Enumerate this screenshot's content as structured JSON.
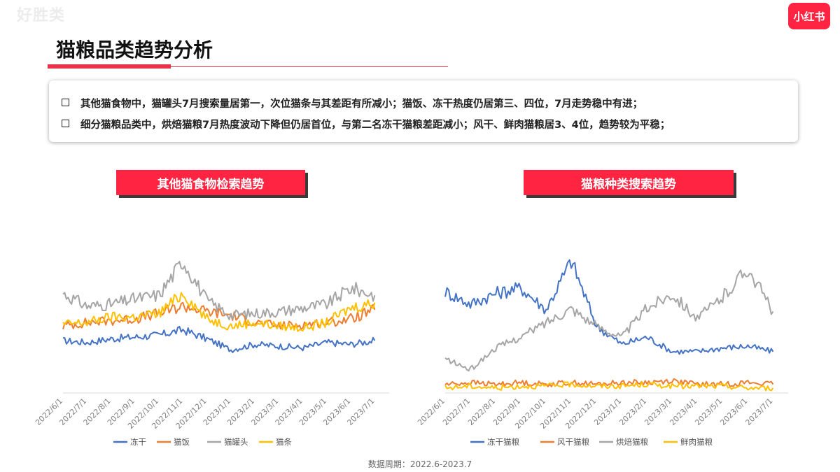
{
  "watermark": "好胜类",
  "brand": "小红书",
  "page_title": "猫粮品类趋势分析",
  "summary": [
    "其他猫食物中，猫罐头7月搜索量居第一，次位猫条与其差距有所减小；猫饭、冻干热度仍居第三、四位，7月走势稳中有进；",
    "细分猫粮品类中，烘焙猫粮7月热度波动下降但仍居首位，与第二名冻干猫粮差距减小；风干、鲜肉猫粮居3、4位，趋势较为平稳；"
  ],
  "footer": "数据周期：2022.6-2023.7",
  "colors": {
    "accent": "#ff2442",
    "blue": "#4472c4",
    "orange": "#ed7d31",
    "gray": "#a5a5a5",
    "yellow": "#ffc000"
  },
  "chart_data": [
    {
      "type": "line",
      "title": "其他猫食物检索趋势",
      "x": [
        "2022/6/1",
        "2022/7/1",
        "2022/8/1",
        "2022/9/1",
        "2022/10/1",
        "2022/11/1",
        "2022/12/1",
        "2023/1/1",
        "2023/2/1",
        "2023/3/1",
        "2023/4/1",
        "2023/5/1",
        "2023/6/1",
        "2023/7/1"
      ],
      "ylim": [
        0,
        100
      ],
      "grid": false,
      "legend": "bottom",
      "series": [
        {
          "name": "冻干",
          "color": "#4472c4",
          "values": [
            28,
            27,
            29,
            30,
            31,
            34,
            29,
            23,
            26,
            25,
            24,
            27,
            26,
            28
          ]
        },
        {
          "name": "猫饭",
          "color": "#ed7d31",
          "values": [
            36,
            38,
            39,
            40,
            43,
            47,
            44,
            42,
            38,
            36,
            37,
            38,
            40,
            45
          ]
        },
        {
          "name": "猫罐头",
          "color": "#a5a5a5",
          "values": [
            54,
            47,
            48,
            51,
            53,
            72,
            50,
            42,
            43,
            44,
            46,
            48,
            57,
            53
          ]
        },
        {
          "name": "猫条",
          "color": "#ffc000",
          "values": [
            37,
            38,
            41,
            41,
            43,
            54,
            40,
            36,
            38,
            36,
            35,
            38,
            46,
            49
          ]
        }
      ]
    },
    {
      "type": "line",
      "title": "猫粮种类搜索趋势",
      "x": [
        "2022/6/1",
        "2022/7/1",
        "2022/8/1",
        "2022/9/1",
        "2022/10/1",
        "2022/11/1",
        "2022/12/1",
        "2023/1/1",
        "2023/2/1",
        "2023/3/1",
        "2023/4/1",
        "2023/5/1",
        "2023/6/1",
        "2023/7/1"
      ],
      "ylim": [
        0,
        100
      ],
      "grid": false,
      "legend": "bottom",
      "series": [
        {
          "name": "冻干猫粮",
          "color": "#4472c4",
          "values": [
            55,
            48,
            54,
            57,
            45,
            72,
            36,
            26,
            30,
            22,
            22,
            24,
            25,
            22
          ]
        },
        {
          "name": "风干猫粮",
          "color": "#ed7d31",
          "values": [
            4,
            5,
            4,
            5,
            4,
            5,
            4,
            5,
            5,
            6,
            4,
            4,
            5,
            4
          ]
        },
        {
          "name": "烘焙猫粮",
          "color": "#a5a5a5",
          "values": [
            18,
            12,
            24,
            30,
            38,
            46,
            36,
            30,
            46,
            54,
            40,
            52,
            68,
            44
          ]
        },
        {
          "name": "鲜肉猫粮",
          "color": "#ffc000",
          "values": [
            2,
            3,
            2,
            3,
            3,
            4,
            3,
            3,
            4,
            3,
            3,
            3,
            2,
            2
          ]
        }
      ]
    }
  ]
}
